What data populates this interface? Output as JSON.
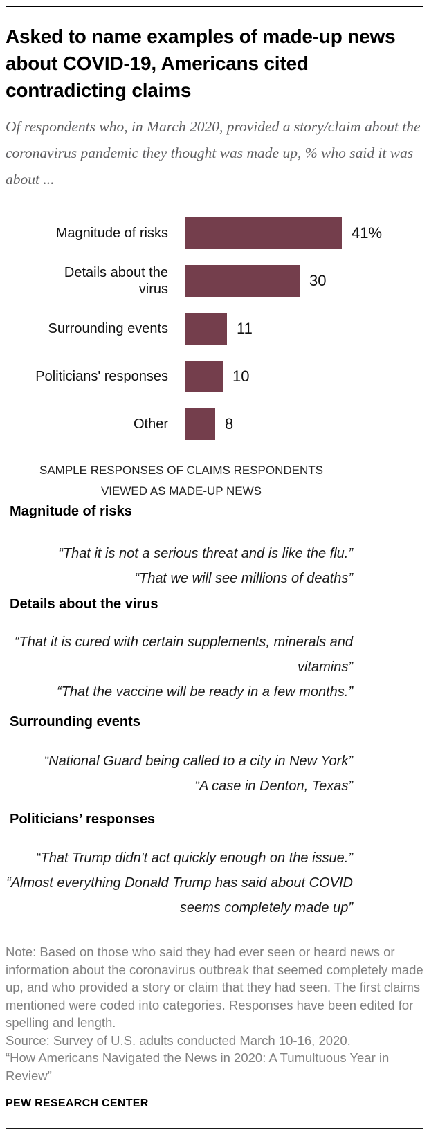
{
  "header": {
    "title": "Asked to name examples of made-up news about COVID-19, Americans cited contradicting claims",
    "subtitle": "Of respondents who, in March 2020, provided a story/claim about the coronavirus pandemic they thought was made up, % who said it was about ..."
  },
  "chart_data": {
    "type": "bar",
    "orientation": "horizontal",
    "categories": [
      "Magnitude of risks",
      "Details about the\nvirus",
      "Surrounding events",
      "Politicians' responses",
      "Other"
    ],
    "values": [
      41,
      30,
      11,
      10,
      8
    ],
    "value_labels": [
      "41%",
      "30",
      "11",
      "10",
      "8"
    ],
    "xlim": [
      0,
      41
    ],
    "bar_color": "#743E4C",
    "grid": false,
    "legend": "none"
  },
  "samples": {
    "kicker_line1": "SAMPLE RESPONSES OF CLAIMS RESPONDENTS",
    "kicker_line2": "VIEWED AS MADE-UP NEWS",
    "sections": [
      {
        "heading": "Magnitude of risks",
        "quotes": [
          "“That it is not a serious threat and is like the flu.”",
          "“That we will see millions of deaths”"
        ]
      },
      {
        "heading": "Details about the virus",
        "quotes": [
          "“That it is cured with certain supplements, minerals and vitamins”",
          "“That the vaccine will be ready in a few months.”"
        ]
      },
      {
        "heading": "Surrounding events",
        "quotes": [
          "“National Guard being called to a city in New York”",
          "“A case in Denton, Texas”"
        ]
      },
      {
        "heading": "Politicians’ responses",
        "quotes": [
          "“That Trump didn't act quickly enough on the issue.”",
          "“Almost everything Donald Trump has said about COVID seems completely made up”"
        ]
      }
    ]
  },
  "footer": {
    "note": "Note: Based on those who said they had ever seen or heard news or information about the coronavirus outbreak that seemed completely made up, and who provided a story or claim that they had seen. The first claims mentioned were coded into categories. Responses have been edited for spelling and length.",
    "source": "Source: Survey of U.S. adults conducted March 10-16, 2020.",
    "report": "“How Americans Navigated the News in 2020: A Tumultuous Year in Review”",
    "brand": "PEW RESEARCH CENTER"
  }
}
